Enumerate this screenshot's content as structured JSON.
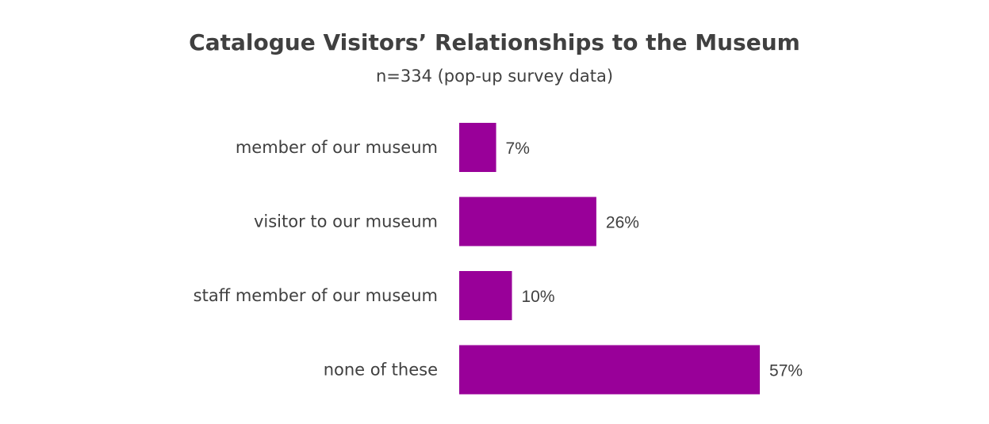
{
  "chart_data": {
    "type": "bar",
    "orientation": "horizontal",
    "title": "Catalogue Visitors’ Relationships to the Museum",
    "subtitle": "n=334 (pop-up survey data)",
    "categories": [
      "member of our museum",
      "visitor to our museum",
      "staff member of our museum",
      "none of these"
    ],
    "values": [
      7,
      26,
      10,
      57
    ],
    "value_labels": [
      "7%",
      "26%",
      "10%",
      "57%"
    ],
    "unit": "%",
    "xlim": [
      0,
      100
    ],
    "grid": false,
    "legend": "none",
    "bar_color": "#990099"
  }
}
